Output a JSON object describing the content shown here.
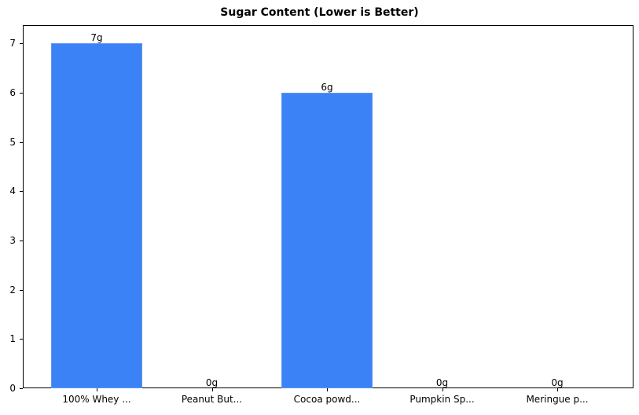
{
  "chart_data": {
    "type": "bar",
    "title": "Sugar Content (Lower is Better)",
    "xlabel": "",
    "ylabel": "",
    "categories": [
      "100% Whey ...",
      "Peanut But...",
      "Cocoa powd...",
      "Pumpkin Sp...",
      "Meringue p..."
    ],
    "values": [
      7,
      0,
      6,
      0,
      0
    ],
    "value_labels": [
      "7g",
      "0g",
      "6g",
      "0g",
      "0g"
    ],
    "yticks": [
      "0",
      "1",
      "2",
      "3",
      "4",
      "5",
      "6",
      "7"
    ],
    "ylim": [
      0,
      7.35
    ],
    "grid": false,
    "legend": null,
    "bar_color": "#3b82f6"
  }
}
